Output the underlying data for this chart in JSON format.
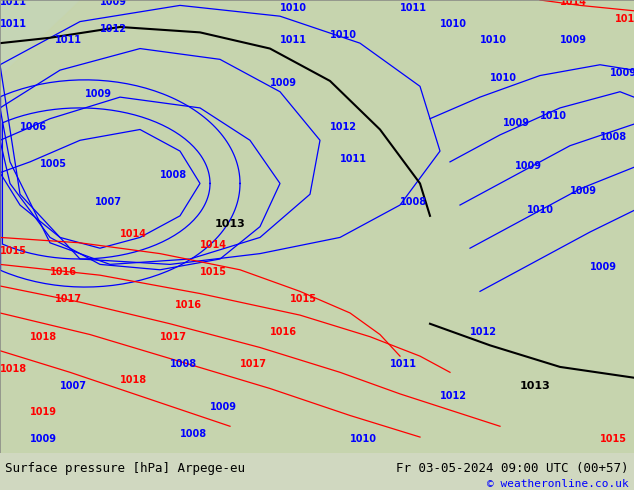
{
  "title_left": "Surface pressure [hPa] Arpege-eu",
  "title_right": "Fr 03-05-2024 09:00 UTC (00+57)",
  "copyright": "© weatheronline.co.uk",
  "bg_color": "#d0d8c0",
  "footer_bg": "#e8e8e8",
  "fig_width": 6.34,
  "fig_height": 4.9,
  "dpi": 100
}
